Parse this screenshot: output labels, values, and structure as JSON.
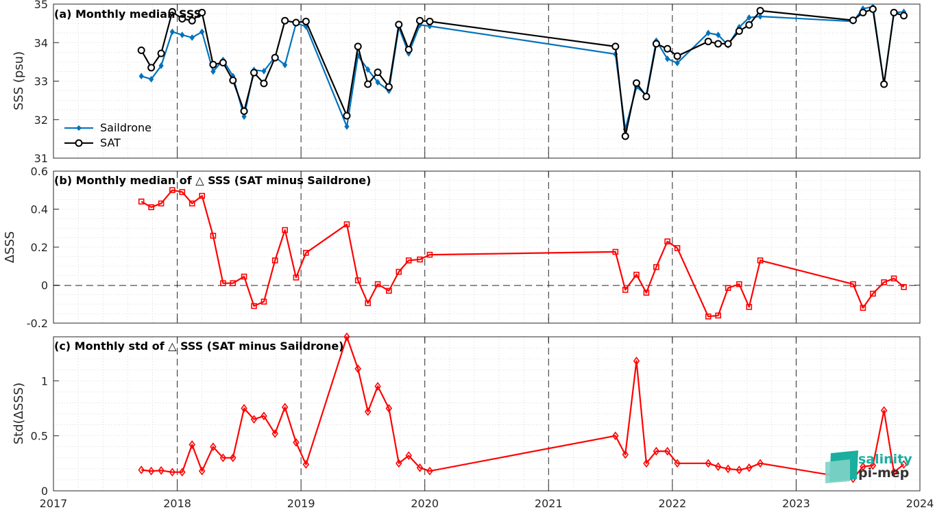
{
  "chart_data": [
    {
      "panel": "a",
      "type": "line",
      "title": "(a) Monthly median SSS",
      "ylabel": "SSS (psu)",
      "xlim": [
        2017,
        2024
      ],
      "ylim": [
        31,
        35
      ],
      "xticks": [
        "2017",
        "2018",
        "2019",
        "2020",
        "2021",
        "2022",
        "2023",
        "2024"
      ],
      "yticks": [
        "31",
        "32",
        "33",
        "34",
        "35"
      ],
      "grid": "minor-dotted",
      "legend_position": "lower-left",
      "series": [
        {
          "name": "Saildrone",
          "color": "#0072BD",
          "marker": "diamond",
          "x": [
            2017.71,
            2017.79,
            2017.87,
            2017.96,
            2018.04,
            2018.12,
            2018.2,
            2018.29,
            2018.37,
            2018.45,
            2018.54,
            2018.62,
            2018.7,
            2018.79,
            2018.87,
            2018.96,
            2019.04,
            2019.37,
            2019.46,
            2019.54,
            2019.62,
            2019.71,
            2019.79,
            2019.87,
            2019.96,
            2020.04,
            2021.54,
            2021.62,
            2021.71,
            2021.79,
            2021.87,
            2021.96,
            2022.04,
            2022.29,
            2022.37,
            2022.45,
            2022.54,
            2022.62,
            2022.71,
            2023.46,
            2023.54,
            2023.62,
            2023.71,
            2023.79,
            2023.87
          ],
          "y": [
            33.13,
            33.05,
            33.4,
            34.28,
            34.2,
            34.13,
            34.28,
            33.25,
            33.55,
            33.13,
            32.08,
            33.29,
            33.26,
            33.63,
            33.42,
            34.5,
            34.42,
            31.82,
            33.66,
            33.3,
            32.97,
            32.75,
            34.4,
            33.72,
            34.46,
            34.43,
            33.7,
            31.75,
            32.85,
            32.64,
            34.05,
            33.58,
            33.47,
            34.25,
            34.2,
            33.93,
            34.4,
            34.65,
            34.68,
            34.55,
            34.88,
            34.93,
            32.93,
            34.78,
            34.8
          ]
        },
        {
          "name": "SAT",
          "color": "#000000",
          "marker": "circle",
          "x": [
            2017.71,
            2017.79,
            2017.87,
            2017.96,
            2018.04,
            2018.12,
            2018.2,
            2018.29,
            2018.37,
            2018.45,
            2018.54,
            2018.62,
            2018.7,
            2018.79,
            2018.87,
            2018.96,
            2019.04,
            2019.37,
            2019.46,
            2019.54,
            2019.62,
            2019.71,
            2019.79,
            2019.87,
            2019.96,
            2020.04,
            2021.54,
            2021.62,
            2021.71,
            2021.79,
            2021.87,
            2021.96,
            2022.04,
            2022.29,
            2022.37,
            2022.45,
            2022.54,
            2022.62,
            2022.71,
            2023.46,
            2023.54,
            2023.62,
            2023.71,
            2023.79,
            2023.87
          ],
          "y": [
            33.8,
            33.35,
            33.72,
            34.8,
            34.62,
            34.57,
            34.78,
            33.43,
            33.48,
            33.02,
            32.22,
            33.22,
            32.94,
            33.61,
            34.57,
            34.52,
            34.55,
            32.1,
            33.9,
            32.92,
            33.23,
            32.85,
            34.47,
            33.82,
            34.57,
            34.55,
            33.9,
            31.57,
            32.95,
            32.6,
            33.97,
            33.84,
            33.65,
            34.03,
            33.97,
            33.97,
            34.3,
            34.46,
            34.83,
            34.58,
            34.78,
            34.87,
            32.92,
            34.78,
            34.7
          ]
        }
      ]
    },
    {
      "panel": "b",
      "type": "line",
      "title": "(b) Monthly median of △ SSS (SAT minus Saildrone)",
      "ylabel": "ΔSSS",
      "xlim": [
        2017,
        2024
      ],
      "ylim": [
        -0.2,
        0.6
      ],
      "xticks": [
        "2017",
        "2018",
        "2019",
        "2020",
        "2021",
        "2022",
        "2023",
        "2024"
      ],
      "yticks": [
        "-0.2",
        "0",
        "0.2",
        "0.4",
        "0.6"
      ],
      "zero_line": true,
      "series": [
        {
          "color": "#FF0000",
          "marker": "square",
          "x": [
            2017.71,
            2017.79,
            2017.87,
            2017.96,
            2018.04,
            2018.12,
            2018.2,
            2018.29,
            2018.37,
            2018.45,
            2018.54,
            2018.62,
            2018.7,
            2018.79,
            2018.87,
            2018.96,
            2019.04,
            2019.37,
            2019.46,
            2019.54,
            2019.62,
            2019.71,
            2019.79,
            2019.87,
            2019.96,
            2020.04,
            2021.54,
            2021.62,
            2021.71,
            2021.79,
            2021.87,
            2021.96,
            2022.04,
            2022.29,
            2022.37,
            2022.45,
            2022.54,
            2022.62,
            2022.71,
            2023.46,
            2023.54,
            2023.62,
            2023.71,
            2023.79,
            2023.87
          ],
          "y": [
            0.44,
            0.41,
            0.43,
            0.5,
            0.49,
            0.43,
            0.47,
            0.26,
            0.01,
            0.01,
            0.045,
            -0.11,
            -0.087,
            0.13,
            0.29,
            0.04,
            0.17,
            0.32,
            0.025,
            -0.095,
            0.005,
            -0.03,
            0.07,
            0.13,
            0.135,
            0.16,
            0.175,
            -0.025,
            0.055,
            -0.04,
            0.095,
            0.23,
            0.195,
            -0.165,
            -0.16,
            -0.015,
            0.005,
            -0.115,
            0.13,
            0.005,
            -0.12,
            -0.045,
            0.015,
            0.035,
            -0.01
          ]
        }
      ]
    },
    {
      "panel": "c",
      "type": "line",
      "title": "(c) Monthly std of △ SSS (SAT minus Saildrone)",
      "ylabel": "Std(ΔSSS)",
      "xlim": [
        2017,
        2024
      ],
      "ylim": [
        0,
        1.4
      ],
      "xticks": [
        "2017",
        "2018",
        "2019",
        "2020",
        "2021",
        "2022",
        "2023",
        "2024"
      ],
      "yticks": [
        "0",
        "0.5",
        "1"
      ],
      "series": [
        {
          "color": "#FF0000",
          "marker": "diamond",
          "x": [
            2017.71,
            2017.79,
            2017.87,
            2017.96,
            2018.04,
            2018.12,
            2018.2,
            2018.29,
            2018.37,
            2018.45,
            2018.54,
            2018.62,
            2018.7,
            2018.79,
            2018.87,
            2018.96,
            2019.04,
            2019.37,
            2019.46,
            2019.54,
            2019.62,
            2019.71,
            2019.79,
            2019.87,
            2019.96,
            2020.04,
            2021.54,
            2021.62,
            2021.71,
            2021.79,
            2021.87,
            2021.96,
            2022.04,
            2022.29,
            2022.37,
            2022.45,
            2022.54,
            2022.62,
            2022.71,
            2023.46,
            2023.54,
            2023.62,
            2023.71,
            2023.79,
            2023.87
          ],
          "y": [
            0.19,
            0.18,
            0.185,
            0.17,
            0.17,
            0.42,
            0.18,
            0.4,
            0.3,
            0.3,
            0.75,
            0.65,
            0.68,
            0.52,
            0.76,
            0.44,
            0.24,
            1.4,
            1.11,
            0.72,
            0.95,
            0.75,
            0.25,
            0.32,
            0.21,
            0.18,
            0.5,
            0.33,
            1.18,
            0.25,
            0.36,
            0.36,
            0.25,
            0.25,
            0.22,
            0.2,
            0.19,
            0.21,
            0.25,
            0.11,
            0.22,
            0.23,
            0.73,
            0.17,
            0.24
          ]
        }
      ]
    }
  ],
  "logo": {
    "line1": "salinity",
    "line2": "pi-mep",
    "color1": "#1AAE9F",
    "color2": "#333333"
  }
}
